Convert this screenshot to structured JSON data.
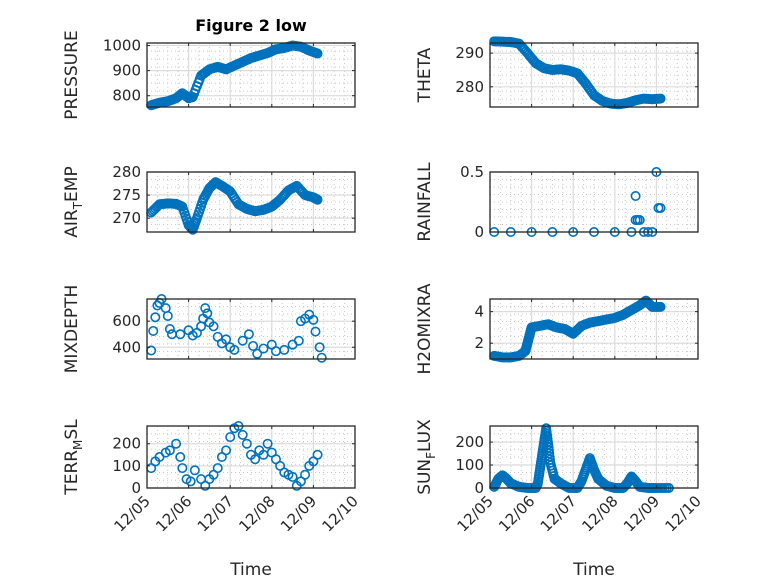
{
  "chart_data": {
    "type": "scatter",
    "title": "Figure 2 low",
    "marker": "open-circle",
    "color": "#0072BD",
    "x_ticks": [
      "12/05",
      "12/06",
      "12/07",
      "12/08",
      "12/09",
      "12/10"
    ],
    "x_range_days": [
      0,
      5
    ],
    "xlabel": "Time",
    "grid": "major+minor",
    "panels": [
      {
        "name": "pressure",
        "ylabel": "PRESSURE",
        "sub": null,
        "ylim": [
          755,
          1010
        ],
        "yticks": [
          800,
          900,
          1000
        ],
        "col": 0,
        "row": 0,
        "show_xticks": false,
        "title": "Figure 2 low",
        "series": [
          [
            0.1,
            762
          ],
          [
            0.3,
            772
          ],
          [
            0.5,
            778
          ],
          [
            0.7,
            790
          ],
          [
            0.85,
            810
          ],
          [
            1.0,
            790
          ],
          [
            1.1,
            795
          ],
          [
            1.3,
            880
          ],
          [
            1.5,
            905
          ],
          [
            1.7,
            915
          ],
          [
            1.9,
            905
          ],
          [
            2.1,
            920
          ],
          [
            2.3,
            935
          ],
          [
            2.5,
            950
          ],
          [
            2.7,
            960
          ],
          [
            2.9,
            970
          ],
          [
            3.1,
            985
          ],
          [
            3.3,
            990
          ],
          [
            3.5,
            1000
          ],
          [
            3.7,
            995
          ],
          [
            3.9,
            980
          ],
          [
            4.1,
            968
          ]
        ]
      },
      {
        "name": "theta",
        "ylabel": "THETA",
        "sub": null,
        "ylim": [
          274,
          293
        ],
        "yticks": [
          280,
          290
        ],
        "col": 1,
        "row": 0,
        "show_xticks": false,
        "series": [
          [
            0.1,
            293.5
          ],
          [
            0.3,
            293.4
          ],
          [
            0.5,
            293.3
          ],
          [
            0.7,
            292.8
          ],
          [
            0.9,
            290
          ],
          [
            1.1,
            287
          ],
          [
            1.3,
            285.5
          ],
          [
            1.5,
            285
          ],
          [
            1.7,
            285.2
          ],
          [
            1.9,
            284.8
          ],
          [
            2.1,
            284
          ],
          [
            2.3,
            281
          ],
          [
            2.5,
            277.5
          ],
          [
            2.7,
            275.8
          ],
          [
            2.9,
            275
          ],
          [
            3.1,
            274.8
          ],
          [
            3.3,
            275.2
          ],
          [
            3.5,
            276
          ],
          [
            3.7,
            276.5
          ],
          [
            3.9,
            276.3
          ],
          [
            4.1,
            276.5
          ]
        ]
      },
      {
        "name": "air-temp",
        "ylabel": "AIR",
        "sub": "T",
        "ylabel_after": "EMP",
        "ylim": [
          267,
          280
        ],
        "yticks": [
          270,
          275,
          280
        ],
        "col": 0,
        "row": 1,
        "show_xticks": false,
        "series": [
          [
            0.1,
            271.2
          ],
          [
            0.3,
            273
          ],
          [
            0.5,
            273.2
          ],
          [
            0.7,
            273.1
          ],
          [
            0.85,
            272.5
          ],
          [
            1.0,
            268.5
          ],
          [
            1.1,
            267.5
          ],
          [
            1.2,
            270
          ],
          [
            1.35,
            274
          ],
          [
            1.5,
            276.5
          ],
          [
            1.65,
            277.8
          ],
          [
            1.8,
            277
          ],
          [
            2.0,
            275.8
          ],
          [
            2.2,
            273
          ],
          [
            2.4,
            272
          ],
          [
            2.6,
            271.5
          ],
          [
            2.8,
            271.8
          ],
          [
            3.0,
            272.5
          ],
          [
            3.2,
            274
          ],
          [
            3.4,
            276
          ],
          [
            3.6,
            277
          ],
          [
            3.8,
            275
          ],
          [
            4.0,
            274.5
          ],
          [
            4.1,
            274
          ]
        ]
      },
      {
        "name": "rainfall",
        "ylabel": "RAINFALL",
        "sub": null,
        "ylim": [
          0,
          0.5
        ],
        "yticks": [
          0,
          0.5
        ],
        "col": 1,
        "row": 1,
        "show_xticks": false,
        "series": [
          [
            0.1,
            0
          ],
          [
            0.5,
            0
          ],
          [
            1.0,
            0
          ],
          [
            1.5,
            0
          ],
          [
            2.0,
            0
          ],
          [
            2.5,
            0
          ],
          [
            3.0,
            0
          ],
          [
            3.4,
            0
          ],
          [
            3.5,
            0.3
          ],
          [
            3.5,
            0.1
          ],
          [
            3.55,
            0.1
          ],
          [
            3.6,
            0.1
          ],
          [
            3.7,
            0
          ],
          [
            3.8,
            0
          ],
          [
            3.9,
            0
          ],
          [
            4.0,
            0.5
          ],
          [
            4.05,
            0.2
          ],
          [
            4.1,
            0.2
          ]
        ]
      },
      {
        "name": "mixdepth",
        "ylabel": "MIXDEPTH",
        "sub": null,
        "ylim": [
          310,
          770
        ],
        "yticks": [
          400,
          600
        ],
        "col": 0,
        "row": 2,
        "show_xticks": false,
        "series": [
          [
            0.1,
            375
          ],
          [
            0.15,
            525
          ],
          [
            0.2,
            630
          ],
          [
            0.25,
            720
          ],
          [
            0.3,
            740
          ],
          [
            0.35,
            770
          ],
          [
            0.45,
            700
          ],
          [
            0.5,
            640
          ],
          [
            0.55,
            540
          ],
          [
            0.6,
            500
          ],
          [
            0.8,
            500
          ],
          [
            1.0,
            530
          ],
          [
            1.1,
            490
          ],
          [
            1.2,
            510
          ],
          [
            1.3,
            560
          ],
          [
            1.35,
            620
          ],
          [
            1.4,
            700
          ],
          [
            1.45,
            660
          ],
          [
            1.5,
            590
          ],
          [
            1.6,
            560
          ],
          [
            1.7,
            480
          ],
          [
            1.8,
            430
          ],
          [
            1.9,
            460
          ],
          [
            2.0,
            400
          ],
          [
            2.1,
            380
          ],
          [
            2.3,
            450
          ],
          [
            2.45,
            500
          ],
          [
            2.55,
            410
          ],
          [
            2.65,
            350
          ],
          [
            2.8,
            390
          ],
          [
            3.0,
            420
          ],
          [
            3.1,
            370
          ],
          [
            3.3,
            380
          ],
          [
            3.5,
            420
          ],
          [
            3.65,
            450
          ],
          [
            3.7,
            600
          ],
          [
            3.8,
            620
          ],
          [
            3.9,
            650
          ],
          [
            4.0,
            610
          ],
          [
            4.05,
            520
          ],
          [
            4.15,
            400
          ],
          [
            4.2,
            320
          ]
        ]
      },
      {
        "name": "h2omixra",
        "ylabel": "H2OMIXRA",
        "sub": null,
        "ylim": [
          1,
          4.8
        ],
        "yticks": [
          2,
          4
        ],
        "col": 1,
        "row": 2,
        "show_xticks": false,
        "series": [
          [
            0.1,
            1.2
          ],
          [
            0.3,
            1.1
          ],
          [
            0.5,
            1.1
          ],
          [
            0.7,
            1.2
          ],
          [
            0.85,
            1.5
          ],
          [
            0.9,
            2
          ],
          [
            0.95,
            2.5
          ],
          [
            1.0,
            3
          ],
          [
            1.2,
            3.1
          ],
          [
            1.4,
            3.2
          ],
          [
            1.6,
            3
          ],
          [
            1.8,
            2.9
          ],
          [
            2.0,
            2.6
          ],
          [
            2.2,
            3.1
          ],
          [
            2.4,
            3.3
          ],
          [
            2.6,
            3.4
          ],
          [
            2.8,
            3.5
          ],
          [
            3.0,
            3.6
          ],
          [
            3.2,
            3.8
          ],
          [
            3.4,
            4.1
          ],
          [
            3.6,
            4.4
          ],
          [
            3.75,
            4.7
          ],
          [
            3.9,
            4.3
          ],
          [
            4.1,
            4.3
          ]
        ]
      },
      {
        "name": "terr-msl",
        "ylabel": "TERR",
        "sub": "M",
        "ylabel_after": "SL",
        "ylim": [
          0,
          280
        ],
        "yticks": [
          0,
          100,
          200
        ],
        "col": 0,
        "row": 3,
        "show_xticks": true,
        "series": [
          [
            0.1,
            90
          ],
          [
            0.2,
            120
          ],
          [
            0.3,
            140
          ],
          [
            0.45,
            160
          ],
          [
            0.55,
            170
          ],
          [
            0.7,
            200
          ],
          [
            0.8,
            140
          ],
          [
            0.85,
            90
          ],
          [
            0.95,
            40
          ],
          [
            1.05,
            30
          ],
          [
            1.15,
            80
          ],
          [
            1.3,
            40
          ],
          [
            1.4,
            10
          ],
          [
            1.5,
            40
          ],
          [
            1.6,
            60
          ],
          [
            1.7,
            90
          ],
          [
            1.8,
            140
          ],
          [
            1.9,
            170
          ],
          [
            2.0,
            230
          ],
          [
            2.1,
            270
          ],
          [
            2.2,
            280
          ],
          [
            2.3,
            240
          ],
          [
            2.4,
            200
          ],
          [
            2.5,
            150
          ],
          [
            2.6,
            130
          ],
          [
            2.7,
            170
          ],
          [
            2.8,
            150
          ],
          [
            2.9,
            200
          ],
          [
            3.0,
            160
          ],
          [
            3.1,
            130
          ],
          [
            3.2,
            100
          ],
          [
            3.3,
            70
          ],
          [
            3.4,
            60
          ],
          [
            3.5,
            50
          ],
          [
            3.6,
            10
          ],
          [
            3.7,
            30
          ],
          [
            3.8,
            60
          ],
          [
            3.9,
            100
          ],
          [
            4.0,
            120
          ],
          [
            4.1,
            150
          ]
        ]
      },
      {
        "name": "sun-flux",
        "ylabel": "SUN",
        "sub": "F",
        "ylabel_after": "LUX",
        "ylim": [
          0,
          270
        ],
        "yticks": [
          0,
          100,
          200
        ],
        "col": 1,
        "row": 3,
        "show_xticks": true,
        "series": [
          [
            0.1,
            5
          ],
          [
            0.2,
            40
          ],
          [
            0.3,
            55
          ],
          [
            0.4,
            40
          ],
          [
            0.5,
            20
          ],
          [
            0.7,
            5
          ],
          [
            0.9,
            0
          ],
          [
            1.1,
            0
          ],
          [
            1.15,
            20
          ],
          [
            1.2,
            80
          ],
          [
            1.25,
            140
          ],
          [
            1.3,
            200
          ],
          [
            1.35,
            260
          ],
          [
            1.4,
            190
          ],
          [
            1.45,
            110
          ],
          [
            1.55,
            40
          ],
          [
            1.7,
            20
          ],
          [
            1.9,
            0
          ],
          [
            2.1,
            0
          ],
          [
            2.2,
            30
          ],
          [
            2.3,
            80
          ],
          [
            2.4,
            130
          ],
          [
            2.5,
            80
          ],
          [
            2.6,
            40
          ],
          [
            2.8,
            10
          ],
          [
            3.0,
            0
          ],
          [
            3.2,
            0
          ],
          [
            3.3,
            20
          ],
          [
            3.4,
            50
          ],
          [
            3.5,
            30
          ],
          [
            3.6,
            5
          ],
          [
            3.8,
            0
          ],
          [
            4.0,
            0
          ],
          [
            4.3,
            0
          ]
        ]
      }
    ]
  }
}
